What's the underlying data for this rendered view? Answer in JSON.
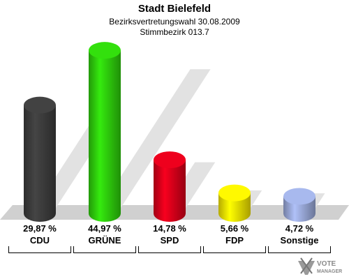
{
  "header": {
    "title": "Stadt Bielefeld",
    "subtitle": "Bezirksvertretungswahl 30.08.2009",
    "district": "Stimmbezirk 013.7"
  },
  "chart_data": {
    "type": "bar",
    "title": "Stadt Bielefeld",
    "categories": [
      "CDU",
      "GRÜNE",
      "SPD",
      "FDP",
      "Sonstige"
    ],
    "values": [
      29.87,
      44.97,
      14.78,
      5.66,
      4.72
    ],
    "value_labels": [
      "29,87 %",
      "44,97 %",
      "14,78 %",
      "5,66 %",
      "4,72 %"
    ],
    "colors": [
      "#3c3c3c",
      "#2ecc0c",
      "#d8001a",
      "#f2e200",
      "#99a8d8"
    ],
    "ylim": [
      0,
      50
    ],
    "grid": false,
    "legend": "none"
  },
  "logo": {
    "line1": "VOTE",
    "line2": "MANAGER"
  }
}
